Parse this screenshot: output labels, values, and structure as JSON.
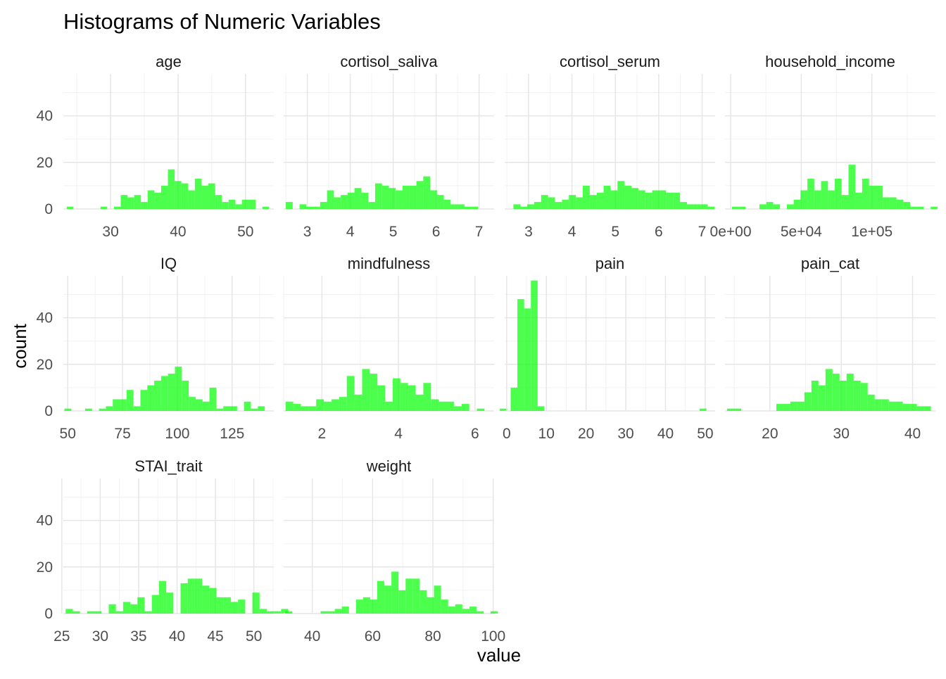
{
  "chart_data": {
    "type": "bar",
    "title": "Histograms of Numeric Variables",
    "xlabel": "value",
    "ylabel": "count",
    "ylim": [
      0,
      58
    ],
    "y_ticks": [
      0,
      20,
      40
    ],
    "y_tick_labels": [
      "0",
      "20",
      "40"
    ],
    "bar_color": "#00ff00",
    "bar_opacity": 0.7,
    "grid": true,
    "panels": [
      {
        "name": "age",
        "xlim": [
          23.0,
          54.2
        ],
        "x_ticks": [
          30,
          40,
          50
        ],
        "x_tick_labels": [
          "30",
          "40",
          "50"
        ],
        "bin_start": 23.5,
        "bin_width": 1.0,
        "counts": [
          1,
          0,
          0,
          0,
          0,
          1,
          0,
          1,
          6,
          5,
          6,
          3,
          8,
          7,
          10,
          17,
          12,
          11,
          8,
          13,
          10,
          11,
          6,
          3,
          4,
          2,
          4,
          4,
          0,
          1
        ]
      },
      {
        "name": "cortisol_saliva",
        "xlim": [
          2.45,
          7.35
        ],
        "x_ticks": [
          3,
          4,
          5,
          6,
          7
        ],
        "x_tick_labels": [
          "3",
          "4",
          "5",
          "6",
          "7"
        ],
        "bin_start": 2.5,
        "bin_width": 0.16,
        "counts": [
          3,
          0,
          2,
          1,
          1,
          3,
          8,
          5,
          6,
          7,
          9,
          7,
          3,
          11,
          10,
          9,
          8,
          10,
          10,
          12,
          14,
          8,
          6,
          4,
          2,
          2,
          1,
          1
        ]
      },
      {
        "name": "cortisol_serum",
        "xlim": [
          2.45,
          7.3
        ],
        "x_ticks": [
          3,
          4,
          5,
          6,
          7
        ],
        "x_tick_labels": [
          "3",
          "4",
          "5",
          "6",
          "7"
        ],
        "bin_start": 2.65,
        "bin_width": 0.16,
        "counts": [
          2,
          1,
          2,
          3,
          6,
          5,
          3,
          4,
          6,
          5,
          10,
          6,
          7,
          10,
          8,
          12,
          10,
          9,
          8,
          7,
          8,
          8,
          7,
          7,
          3,
          2,
          2,
          2,
          1
        ]
      },
      {
        "name": "household_income",
        "xlim": [
          -4000,
          145000
        ],
        "x_ticks": [
          0,
          50000,
          100000
        ],
        "x_tick_labels": [
          "0e+00",
          "5e+04",
          "1e+05"
        ],
        "bin_start": 1000,
        "bin_width": 4850,
        "counts": [
          1,
          1,
          0,
          0,
          2,
          3,
          2,
          0,
          2,
          4,
          8,
          13,
          8,
          12,
          8,
          13,
          6,
          19,
          7,
          13,
          10,
          10,
          5,
          5,
          4,
          3,
          1,
          1,
          0,
          1
        ]
      },
      {
        "name": "IQ",
        "xlim": [
          48,
          144
        ],
        "x_ticks": [
          50,
          75,
          100,
          125
        ],
        "x_tick_labels": [
          "50",
          "75",
          "100",
          "125"
        ],
        "bin_start": 48.5,
        "bin_width": 3.15,
        "counts": [
          1,
          0,
          0,
          1,
          0,
          1,
          2,
          5,
          5,
          9,
          2,
          9,
          11,
          13,
          15,
          16,
          19,
          13,
          6,
          5,
          4,
          10,
          1,
          2,
          2,
          0,
          4,
          1,
          2
        ]
      },
      {
        "name": "mindfulness",
        "xlim": [
          1.0,
          6.5
        ],
        "x_ticks": [
          2,
          4,
          6
        ],
        "x_tick_labels": [
          "2",
          "4",
          "6"
        ],
        "bin_start": 1.05,
        "bin_width": 0.2,
        "counts": [
          4,
          3,
          2,
          2,
          5,
          4,
          5,
          6,
          15,
          7,
          18,
          16,
          11,
          4,
          14,
          12,
          11,
          7,
          12,
          5,
          4,
          4,
          2,
          3,
          0,
          1,
          0,
          0,
          1
        ]
      },
      {
        "name": "pain",
        "xlim": [
          -0.5,
          52.5
        ],
        "x_ticks": [
          0,
          10,
          20,
          30,
          40,
          50
        ],
        "x_tick_labels": [
          "0",
          "10",
          "20",
          "30",
          "40",
          "50"
        ],
        "bin_start": 1.0,
        "bin_width": 1.7,
        "counts": [
          10,
          48,
          44,
          56,
          2,
          0,
          0,
          0,
          0,
          0,
          0,
          0,
          0,
          0,
          0,
          0,
          0,
          0,
          0,
          0,
          0,
          0,
          0,
          0,
          0,
          0,
          0,
          0,
          1
        ]
      },
      {
        "name": "pain_cat",
        "xlim": [
          13.7,
          43.2
        ],
        "x_ticks": [
          20,
          30,
          40
        ],
        "x_tick_labels": [
          "20",
          "30",
          "40"
        ],
        "bin_start": 14.0,
        "bin_width": 0.985,
        "counts": [
          1,
          1,
          0,
          0,
          0,
          0,
          0,
          3,
          3,
          4,
          4,
          8,
          13,
          11,
          18,
          16,
          13,
          16,
          13,
          12,
          7,
          5,
          5,
          4,
          4,
          3,
          3,
          2,
          2
        ]
      },
      {
        "name": "STAI_trait",
        "xlim": [
          25.2,
          52.6
        ],
        "x_ticks": [
          25,
          30,
          35,
          40,
          45,
          50
        ],
        "x_tick_labels": [
          "25",
          "30",
          "35",
          "40",
          "45",
          "50"
        ],
        "bin_start": 25.5,
        "bin_width": 0.935,
        "counts": [
          2,
          1,
          0,
          1,
          1,
          0,
          4,
          1,
          5,
          4,
          7,
          1,
          8,
          14,
          9,
          0,
          13,
          15,
          15,
          12,
          11,
          7,
          7,
          5,
          6,
          0,
          9,
          2,
          1,
          1,
          2
        ]
      },
      {
        "name": "weight",
        "xlim": [
          30.5,
          100.3
        ],
        "x_ticks": [
          40,
          60,
          80,
          100
        ],
        "x_tick_labels": [
          "40",
          "60",
          "80",
          "100"
        ],
        "bin_start": 31.0,
        "bin_width": 2.35,
        "counts": [
          1,
          0,
          0,
          0,
          0,
          1,
          1,
          2,
          3,
          0,
          6,
          7,
          6,
          14,
          12,
          18,
          10,
          15,
          15,
          10,
          7,
          12,
          6,
          3,
          4,
          2,
          3,
          1,
          0,
          1
        ]
      }
    ]
  }
}
